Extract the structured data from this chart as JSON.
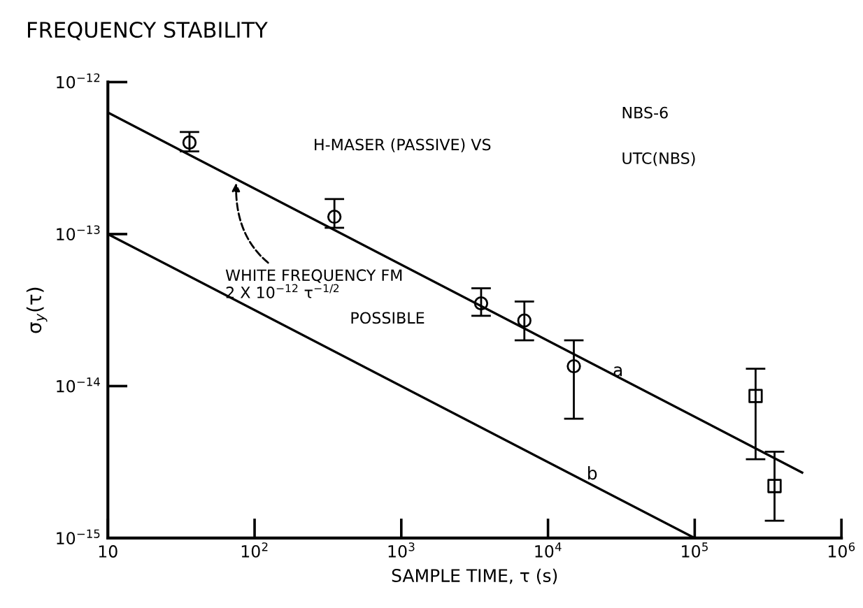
{
  "chart_data": {
    "type": "scatter",
    "title": "FREQUENCY STABILITY",
    "xlabel": "SAMPLE TIME, τ (s)",
    "ylabel": "σ$_{y}$(τ)",
    "log": "xy",
    "grid": false,
    "legend": false,
    "xlim": [
      10,
      1000000
    ],
    "ylim": [
      1e-15,
      1e-12
    ],
    "xticks": [
      {
        "value": 10,
        "label": "10"
      },
      {
        "value": 100,
        "label": "10$^{2}$"
      },
      {
        "value": 1000,
        "label": "10$^{3}$"
      },
      {
        "value": 10000,
        "label": "10$^{4}$"
      },
      {
        "value": 100000,
        "label": "10$^{5}$"
      },
      {
        "value": 1000000,
        "label": "10$^{6}$"
      }
    ],
    "yticks": [
      {
        "value": 1e-15,
        "label": "10$^{−15}$"
      },
      {
        "value": 1e-14,
        "label": "10$^{−14}$"
      },
      {
        "value": 1e-13,
        "label": "10$^{−13}$"
      },
      {
        "value": 1e-12,
        "label": "10$^{−12}$"
      }
    ],
    "series": [
      {
        "type": "line",
        "color": "#000000",
        "marker": "none",
        "line_style": "solid",
        "x": [
          10,
          540000
        ],
        "values": [
          6.3e-13,
          2.7e-15
        ]
      },
      {
        "type": "line",
        "color": "#000000",
        "marker": "none",
        "line_style": "solid",
        "x": [
          10,
          100000
        ],
        "values": [
          1e-13,
          1e-15
        ]
      },
      {
        "color": "#000000",
        "marker": "circle",
        "x": [
          36,
          350,
          3500,
          6900,
          15000
        ],
        "values": [
          4e-13,
          1.3e-13,
          3.5e-14,
          2.7e-14,
          1.35e-14
        ],
        "errors": [
          [
            3.5e-13,
            4.7e-13
          ],
          [
            1.1e-13,
            1.7e-13
          ],
          [
            2.9e-14,
            4.4e-14
          ],
          [
            2e-14,
            3.6e-14
          ],
          [
            6.1e-15,
            2e-14
          ]
        ]
      },
      {
        "color": "#000000",
        "marker": "square",
        "x": [
          260000,
          350000
        ],
        "values": [
          8.6e-15,
          2.2e-15
        ],
        "errors": [
          [
            3.3e-15,
            1.3e-14
          ],
          [
            1.3e-15,
            3.7e-15
          ]
        ]
      }
    ],
    "annotations": [
      "H-MASER (PASSIVE) VS",
      "NBS-6",
      "UTC(NBS)",
      "POSSIBLE",
      {
        "text": "WHITE FREQUENCY FM\n2 X 10$^{−12}$ τ$^{−1/2}$",
        "x": 75,
        "y": 2.3e-13
      },
      {
        "text": "a",
        "x": 30000,
        "y": 1.1e-14
      },
      {
        "text": "b",
        "x": 20000,
        "y": 2.3e-15
      }
    ]
  }
}
